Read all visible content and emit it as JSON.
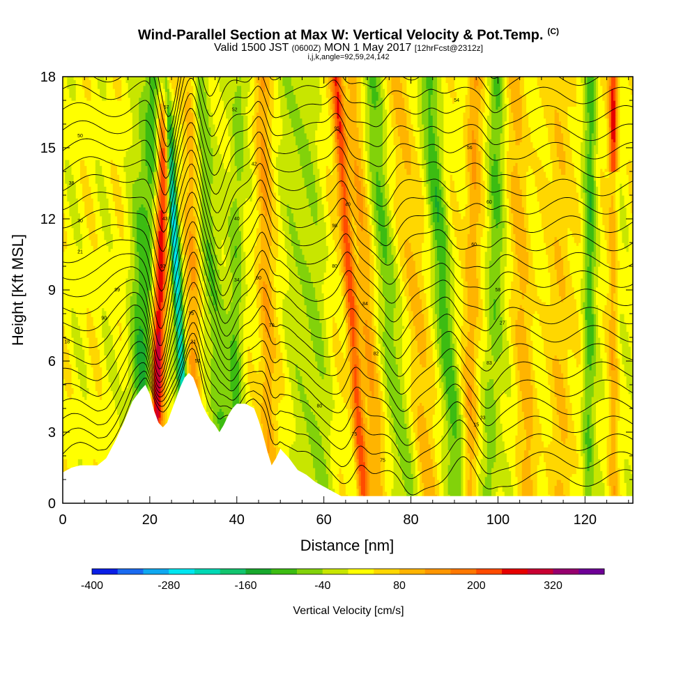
{
  "header": {
    "title": "Wind-Parallel Section at Max W: Vertical Velocity & Pot.Temp.",
    "copyright": "(C)",
    "valid_a": "Valid 1500 JST",
    "valid_b": "(0600Z)",
    "valid_c": "MON 1 May 2017",
    "valid_d": "[12hrFcst@2312z]",
    "params": "i,j,k,angle=92,59,24,142"
  },
  "chart_data": {
    "type": "heatmap",
    "xlabel": "Distance [nm]",
    "ylabel": "Height [Kft MSL]",
    "xlim": [
      0,
      131
    ],
    "ylim": [
      0,
      18
    ],
    "x_ticks": [
      0,
      20,
      40,
      60,
      80,
      100,
      120
    ],
    "y_ticks": [
      0,
      3,
      6,
      9,
      12,
      15,
      18
    ],
    "grid": false,
    "colorbar": {
      "label": "Vertical Velocity [cm/s]",
      "placement": "bottom",
      "tick_values": [
        -400,
        -280,
        -160,
        -40,
        80,
        200,
        320
      ],
      "levels": [
        -400,
        -360,
        -320,
        -280,
        -240,
        -200,
        -160,
        -120,
        -80,
        -40,
        0,
        40,
        80,
        120,
        160,
        200,
        240,
        280,
        320,
        360,
        400
      ],
      "colors": [
        "#0a1ee6",
        "#1a6af0",
        "#0fa8f0",
        "#00e6f0",
        "#00d8b4",
        "#12c46e",
        "#18a82c",
        "#3cbc12",
        "#82d20a",
        "#c8e600",
        "#ffff00",
        "#ffd700",
        "#ffb400",
        "#ff9600",
        "#ff7800",
        "#ff4b00",
        "#e60000",
        "#c80032",
        "#96006e",
        "#6e0096"
      ]
    },
    "terrain_kft": {
      "x": [
        0,
        2,
        4,
        8,
        10,
        12,
        14,
        16,
        18,
        19,
        20,
        21,
        22,
        23,
        24,
        25,
        26,
        27,
        28,
        29,
        30,
        31,
        32,
        33,
        34,
        35,
        36,
        37,
        38,
        39,
        40,
        42,
        44,
        45,
        46,
        47,
        48,
        49,
        50,
        52,
        54,
        56,
        58,
        60,
        62,
        64,
        131
      ],
      "height": [
        1.3,
        1.5,
        1.6,
        1.6,
        1.9,
        2.6,
        3.4,
        4.3,
        4.8,
        5.0,
        4.6,
        3.9,
        3.4,
        3.2,
        3.4,
        3.9,
        4.4,
        4.9,
        5.3,
        5.5,
        5.3,
        4.8,
        4.2,
        3.8,
        3.5,
        3.3,
        3.0,
        3.3,
        3.7,
        4.0,
        4.2,
        4.2,
        4.0,
        3.5,
        2.9,
        2.2,
        1.6,
        1.9,
        2.3,
        1.9,
        1.4,
        1.2,
        0.9,
        0.7,
        0.5,
        0.3,
        0.3
      ]
    },
    "w_structures": [
      {
        "type": "updraft",
        "peak_cm_s": 280,
        "x_top": 23.0,
        "x_bottom": 21.0,
        "y_top": 18,
        "y_bottom": 3.5
      },
      {
        "type": "downdraft",
        "peak_cm_s": -280,
        "x_top": 25.5,
        "x_bottom": 31.0,
        "y_top": 18,
        "y_bottom": 4.5
      },
      {
        "type": "updraft",
        "peak_cm_s": 200,
        "x_top": 65.0,
        "x_bottom": 68.0,
        "y_top": 13,
        "y_bottom": 2.5
      },
      {
        "type": "updraft",
        "peak_cm_s": 200,
        "x_top": 127.0,
        "x_bottom": 127.0,
        "y_top": 18,
        "y_bottom": 14
      }
    ],
    "theta_labels_K": [
      {
        "text": "50",
        "x": 4.0,
        "y": 15.5
      },
      {
        "text": "38",
        "x": 2.0,
        "y": 13.5
      },
      {
        "text": "30",
        "x": 4.0,
        "y": 11.9
      },
      {
        "text": "21",
        "x": 4.0,
        "y": 10.6
      },
      {
        "text": "99",
        "x": 12.5,
        "y": 9.0
      },
      {
        "text": "90",
        "x": 9.5,
        "y": 7.8
      },
      {
        "text": "18",
        "x": 1.0,
        "y": 6.8
      },
      {
        "text": "57",
        "x": 23.8,
        "y": 16.7
      },
      {
        "text": "43",
        "x": 23.5,
        "y": 12.0
      },
      {
        "text": "93",
        "x": 23.0,
        "y": 10.0
      },
      {
        "text": "75",
        "x": 29.5,
        "y": 8.0
      },
      {
        "text": "21",
        "x": 30.0,
        "y": 6.8
      },
      {
        "text": "51",
        "x": 31.0,
        "y": 6.0
      },
      {
        "text": "52",
        "x": 39.5,
        "y": 16.6
      },
      {
        "text": "42",
        "x": 44.0,
        "y": 14.3
      },
      {
        "text": "40",
        "x": 40.0,
        "y": 12.0
      },
      {
        "text": "34",
        "x": 40.0,
        "y": 9.4
      },
      {
        "text": "90",
        "x": 45.0,
        "y": 9.5
      },
      {
        "text": "70",
        "x": 48.0,
        "y": 7.5
      },
      {
        "text": "95",
        "x": 63.0,
        "y": 15.8
      },
      {
        "text": "40",
        "x": 65.5,
        "y": 12.6
      },
      {
        "text": "98",
        "x": 62.5,
        "y": 11.7
      },
      {
        "text": "80",
        "x": 62.5,
        "y": 10.0
      },
      {
        "text": "84",
        "x": 69.5,
        "y": 8.4
      },
      {
        "text": "82",
        "x": 72.0,
        "y": 6.3
      },
      {
        "text": "80",
        "x": 59.0,
        "y": 4.1
      },
      {
        "text": "75",
        "x": 67.0,
        "y": 2.9
      },
      {
        "text": "75",
        "x": 73.5,
        "y": 1.8
      },
      {
        "text": "54",
        "x": 90.5,
        "y": 17.0
      },
      {
        "text": "56",
        "x": 93.5,
        "y": 15.0
      },
      {
        "text": "60",
        "x": 98.0,
        "y": 12.7
      },
      {
        "text": "60",
        "x": 94.5,
        "y": 10.9
      },
      {
        "text": "58",
        "x": 100.0,
        "y": 9.0
      },
      {
        "text": "27",
        "x": 101.0,
        "y": 7.6
      },
      {
        "text": "83",
        "x": 98.0,
        "y": 5.9
      },
      {
        "text": "15",
        "x": 95.0,
        "y": 3.3
      },
      {
        "text": "33",
        "x": 96.5,
        "y": 3.6
      }
    ]
  }
}
